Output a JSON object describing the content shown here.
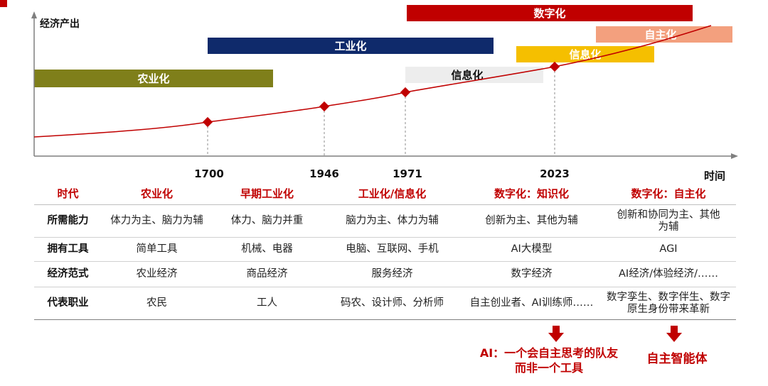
{
  "axis": {
    "y_label": "经济产出",
    "x_label": "时间"
  },
  "colors": {
    "curve": "#c00000",
    "marker": "#c00000",
    "agri": "#7f7f1a",
    "industry": "#0f2a6b",
    "info_gray": "#ededed",
    "digital": "#c00000",
    "info_yellow": "#f5bf00",
    "auto": "#f3a07e"
  },
  "eras": {
    "agri": "农业化",
    "industry": "工业化",
    "info_gray": "信息化",
    "digital": "数字化",
    "info_yellow": "信息化",
    "auto": "自主化"
  },
  "years": [
    "1700",
    "1946",
    "1971",
    "2023"
  ],
  "table": {
    "headers": [
      "时代",
      "农业化",
      "早期工业化",
      "工业化/信息化",
      "数字化：知识化",
      "数字化：自主化"
    ],
    "rows": [
      {
        "label": "所需能力",
        "cells": [
          "体力为主、脑力为辅",
          "体力、脑力并重",
          "脑力为主、体力为辅",
          "创新为主、其他为辅",
          "创新和协同为主、其他为辅"
        ]
      },
      {
        "label": "拥有工具",
        "cells": [
          "简单工具",
          "机械、电器",
          "电脑、互联网、手机",
          "AI大模型",
          "AGI"
        ]
      },
      {
        "label": "经济范式",
        "cells": [
          "农业经济",
          "商品经济",
          "服务经济",
          "数字经济",
          "AI经济/体验经济/……"
        ]
      },
      {
        "label": "代表职业",
        "cells": [
          "农民",
          "工人",
          "码农、设计师、分析师",
          "自主创业者、AI训练师……",
          "数字孪生、数字伴生、数字原生身份带来革新"
        ]
      }
    ]
  },
  "notes": {
    "left_line1": "AI：一个会自主思考的队友",
    "left_line2": "而非一个工具",
    "right": "自主智能体"
  }
}
